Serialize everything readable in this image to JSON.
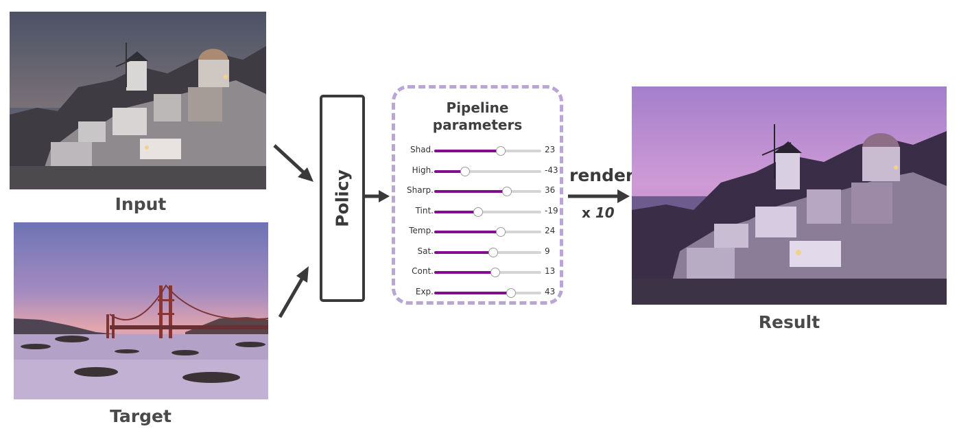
{
  "images": {
    "input_caption": "Input",
    "target_caption": "Target",
    "result_caption": "Result"
  },
  "policy": {
    "label": "Policy"
  },
  "pipeline": {
    "title_line1": "Pipeline",
    "title_line2": "parameters",
    "sliders": [
      {
        "label": "Shad.",
        "value": "23",
        "fraction": 0.62
      },
      {
        "label": "High.",
        "value": "-43",
        "fraction": 0.29
      },
      {
        "label": "Sharp.",
        "value": "36",
        "fraction": 0.68
      },
      {
        "label": "Tint.",
        "value": "-19",
        "fraction": 0.41
      },
      {
        "label": "Temp.",
        "value": "24",
        "fraction": 0.62
      },
      {
        "label": "Sat.",
        "value": "9",
        "fraction": 0.55
      },
      {
        "label": "Cont.",
        "value": "13",
        "fraction": 0.57
      },
      {
        "label": "Exp.",
        "value": "43",
        "fraction": 0.72
      }
    ]
  },
  "render": {
    "label": "render",
    "times_prefix": "x",
    "times_value": "10"
  },
  "colors": {
    "accent": "#840c90",
    "dashed_border": "#b9a6d4",
    "arrow": "#3a3a3a"
  }
}
